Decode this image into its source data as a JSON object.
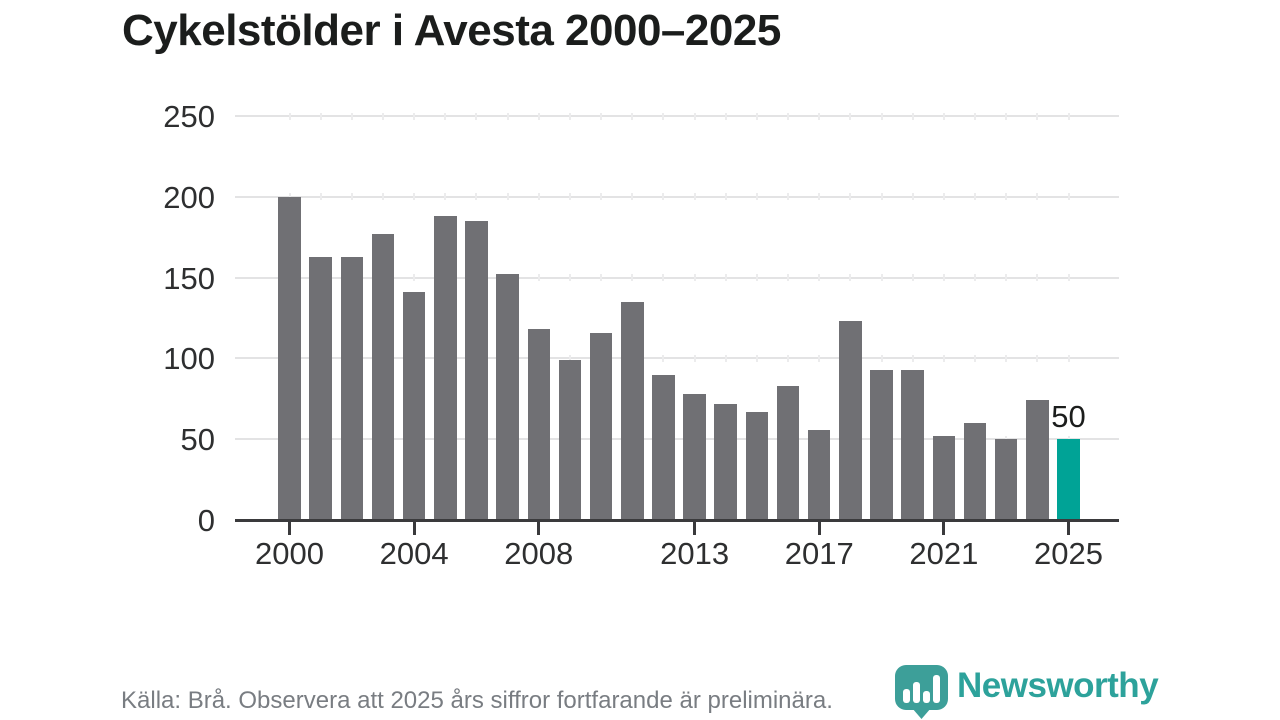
{
  "title": "Cykelstölder i Avesta 2000–2025",
  "footer": {
    "source_note": "Källa: Brå. Observera att 2025 års siffror fortfarande är preliminära."
  },
  "branding": {
    "logo_text": "Newsworthy",
    "logo_icon": "newsworthy-pin-bar-chart-icon",
    "logo_icon_color": "#3d9f99",
    "logo_text_color": "#2da29b"
  },
  "colors": {
    "bar_default": "#707074",
    "bar_highlight": "#00a396",
    "gridline": "#e3e3e4",
    "axis": "#3a3a3c",
    "title_text": "#1b1d1c",
    "tick_label": "#2e2f30",
    "footer_text": "#797d82"
  },
  "chart_data": {
    "type": "bar",
    "title": "Cykelstölder i Avesta 2000–2025",
    "xlabel": "",
    "ylabel": "",
    "x": [
      2000,
      2001,
      2002,
      2003,
      2004,
      2005,
      2006,
      2007,
      2008,
      2009,
      2010,
      2011,
      2012,
      2013,
      2014,
      2015,
      2016,
      2017,
      2018,
      2019,
      2020,
      2021,
      2022,
      2023,
      2024,
      2025
    ],
    "values": [
      200,
      163,
      163,
      177,
      141,
      188,
      185,
      152,
      118,
      99,
      116,
      135,
      90,
      78,
      72,
      67,
      83,
      56,
      123,
      93,
      93,
      52,
      60,
      50,
      74,
      50
    ],
    "highlight_year": 2025,
    "annotation": {
      "x": 2025,
      "text": "50"
    },
    "ylim": [
      0,
      250
    ],
    "yticks": [
      0,
      50,
      100,
      150,
      200,
      250
    ],
    "xticks": [
      2000,
      2004,
      2008,
      2013,
      2017,
      2021,
      2025
    ],
    "grid": "horizontal",
    "legend": "none"
  }
}
